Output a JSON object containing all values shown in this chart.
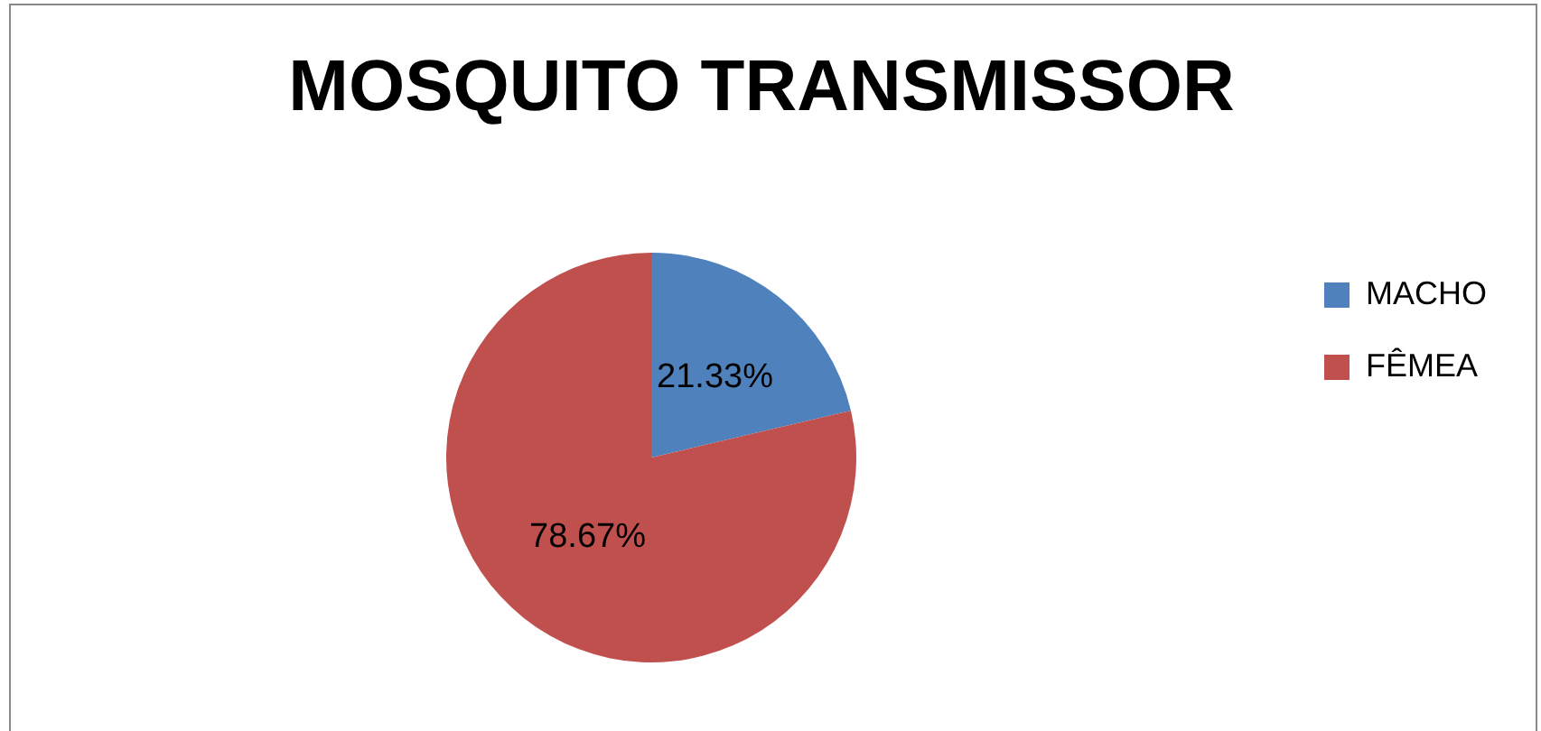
{
  "chart_data": {
    "type": "pie",
    "title": "MOSQUITO TRANSMISSOR",
    "categories": [
      "MACHO",
      "FÊMEA"
    ],
    "values": [
      21.33,
      78.67
    ],
    "value_labels": [
      "21.33%",
      "78.67%"
    ],
    "colors": [
      "#4f81bd",
      "#c0504d"
    ],
    "legend": "right"
  }
}
